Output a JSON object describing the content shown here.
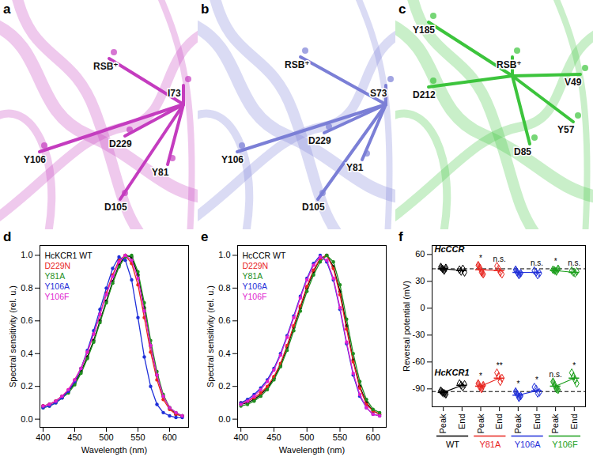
{
  "structures": [
    {
      "panel": "a",
      "color": "#c43cbf",
      "labels": [
        "RSB⁺",
        "I73",
        "D229",
        "Y106",
        "Y81",
        "D105"
      ]
    },
    {
      "panel": "b",
      "color": "#7b7fd6",
      "labels": [
        "RSB⁺",
        "S73",
        "D229",
        "Y106",
        "Y81",
        "D105"
      ]
    },
    {
      "panel": "c",
      "color": "#3cc43c",
      "labels": [
        "Y185",
        "RSB⁺",
        "V49",
        "D212",
        "Y57",
        "D85"
      ]
    }
  ],
  "chart_data": [
    {
      "panel": "d",
      "type": "line",
      "marker": "circle",
      "legend": "top-left",
      "xlabel": "Wavelength (nm)",
      "ylabel": "Spectral sensitivity (rel. u.)",
      "xlim": [
        395,
        630
      ],
      "xticks": [
        400,
        450,
        500,
        550,
        600
      ],
      "ylim": [
        -0.05,
        1.06
      ],
      "yticks": [
        {
          "value": 0,
          "label": "0.0"
        },
        {
          "value": 0.2,
          "label": "0.2"
        },
        {
          "value": 0.4,
          "label": "0.4"
        },
        {
          "value": 0.6,
          "label": "0.6"
        },
        {
          "value": 0.8,
          "label": "0.8"
        },
        {
          "value": 1,
          "label": "1.0"
        }
      ],
      "x": [
        400,
        410,
        420,
        430,
        440,
        450,
        460,
        470,
        480,
        490,
        500,
        510,
        520,
        530,
        540,
        550,
        560,
        570,
        580,
        590,
        600,
        610,
        620
      ],
      "series": [
        {
          "name": "HcKCR1 WT",
          "color": "#000000",
          "values": [
            0.08,
            0.09,
            0.11,
            0.14,
            0.17,
            0.22,
            0.29,
            0.38,
            0.48,
            0.6,
            0.72,
            0.84,
            0.94,
            1.0,
            0.99,
            0.88,
            0.68,
            0.45,
            0.27,
            0.14,
            0.07,
            0.03,
            0.02
          ]
        },
        {
          "name": "D229N",
          "color": "#e8251f",
          "values": [
            0.08,
            0.09,
            0.11,
            0.14,
            0.18,
            0.24,
            0.31,
            0.41,
            0.52,
            0.64,
            0.77,
            0.88,
            0.97,
            1.0,
            0.95,
            0.82,
            0.62,
            0.41,
            0.24,
            0.12,
            0.06,
            0.03,
            0.02
          ]
        },
        {
          "name": "Y81A",
          "color": "#1f8f1f",
          "values": [
            0.07,
            0.08,
            0.1,
            0.13,
            0.16,
            0.21,
            0.28,
            0.37,
            0.47,
            0.59,
            0.71,
            0.83,
            0.93,
            0.99,
            1.0,
            0.9,
            0.71,
            0.48,
            0.29,
            0.15,
            0.07,
            0.04,
            0.02
          ]
        },
        {
          "name": "Y106A",
          "color": "#1f2fd9",
          "values": [
            0.07,
            0.08,
            0.1,
            0.13,
            0.17,
            0.23,
            0.31,
            0.42,
            0.54,
            0.67,
            0.8,
            0.92,
            0.99,
            0.97,
            0.85,
            0.62,
            0.38,
            0.2,
            0.09,
            0.04,
            0.02,
            0.01,
            0.01
          ]
        },
        {
          "name": "Y106F",
          "color": "#e01fd0",
          "values": [
            0.08,
            0.09,
            0.11,
            0.14,
            0.18,
            0.24,
            0.31,
            0.41,
            0.52,
            0.64,
            0.76,
            0.87,
            0.96,
            1.0,
            0.97,
            0.86,
            0.66,
            0.45,
            0.27,
            0.14,
            0.07,
            0.04,
            0.02
          ]
        }
      ]
    },
    {
      "panel": "e",
      "type": "line",
      "marker": "circle",
      "legend": "top-left",
      "xlabel": "Wavelength (nm)",
      "ylabel": "Spectral sensitivity (rel. u.)",
      "xlim": [
        395,
        620
      ],
      "xticks": [
        400,
        450,
        500,
        550,
        600
      ],
      "ylim": [
        -0.05,
        1.06
      ],
      "yticks": [
        {
          "value": 0,
          "label": "0.0"
        },
        {
          "value": 0.2,
          "label": "0.2"
        },
        {
          "value": 0.4,
          "label": "0.4"
        },
        {
          "value": 0.6,
          "label": "0.6"
        },
        {
          "value": 0.8,
          "label": "0.8"
        },
        {
          "value": 1,
          "label": "1.0"
        }
      ],
      "x": [
        400,
        410,
        420,
        430,
        440,
        450,
        460,
        470,
        480,
        490,
        500,
        510,
        520,
        530,
        540,
        550,
        560,
        570,
        580,
        590,
        600,
        610
      ],
      "series": [
        {
          "name": "HcCCR WT",
          "color": "#000000",
          "values": [
            0.09,
            0.1,
            0.12,
            0.15,
            0.19,
            0.25,
            0.33,
            0.44,
            0.56,
            0.68,
            0.8,
            0.9,
            0.98,
            1.0,
            0.93,
            0.78,
            0.57,
            0.36,
            0.2,
            0.1,
            0.05,
            0.03
          ]
        },
        {
          "name": "D229N",
          "color": "#e8251f",
          "values": [
            0.1,
            0.11,
            0.13,
            0.16,
            0.2,
            0.26,
            0.34,
            0.45,
            0.57,
            0.69,
            0.81,
            0.91,
            0.98,
            1.0,
            0.92,
            0.76,
            0.55,
            0.35,
            0.19,
            0.09,
            0.05,
            0.03
          ]
        },
        {
          "name": "Y81A",
          "color": "#1f8f1f",
          "values": [
            0.08,
            0.09,
            0.11,
            0.14,
            0.18,
            0.24,
            0.32,
            0.42,
            0.54,
            0.66,
            0.78,
            0.88,
            0.96,
            1.0,
            0.96,
            0.82,
            0.61,
            0.4,
            0.23,
            0.12,
            0.06,
            0.04
          ]
        },
        {
          "name": "Y106A",
          "color": "#1f2fd9",
          "values": [
            0.1,
            0.12,
            0.15,
            0.19,
            0.24,
            0.31,
            0.4,
            0.51,
            0.63,
            0.75,
            0.86,
            0.95,
            1.0,
            0.96,
            0.85,
            0.67,
            0.46,
            0.27,
            0.14,
            0.07,
            0.03,
            0.02
          ]
        },
        {
          "name": "Y106F",
          "color": "#e01fd0",
          "values": [
            0.09,
            0.11,
            0.14,
            0.18,
            0.23,
            0.3,
            0.39,
            0.5,
            0.62,
            0.74,
            0.85,
            0.94,
            0.99,
            0.97,
            0.86,
            0.68,
            0.47,
            0.28,
            0.15,
            0.07,
            0.03,
            0.02
          ]
        }
      ]
    },
    {
      "panel": "f",
      "type": "scatter",
      "marker": "diamond",
      "ylabel": "Reversal potential (mV)",
      "ylim": [
        -110,
        70
      ],
      "yticks": [
        -90,
        -60,
        -30,
        0,
        30,
        60
      ],
      "categories": [
        "Peak",
        "End",
        "Peak",
        "End",
        "Peak",
        "End",
        "Peak",
        "End"
      ],
      "colors": [
        "#000000",
        "#000000",
        "#e8251f",
        "#e8251f",
        "#1f2fd9",
        "#1f2fd9",
        "#1a9e1a",
        "#1a9e1a"
      ],
      "groups": [
        "WT",
        "Y81A",
        "Y106A",
        "Y106F"
      ],
      "group_colors": [
        "#000000",
        "#e8251f",
        "#1f2fd9",
        "#1a9e1a"
      ],
      "series": [
        {
          "name": "HcCCR",
          "reference": 44,
          "line_style": "dashed",
          "values": [
            44,
            42,
            43,
            42,
            40,
            40,
            42,
            40
          ],
          "errors": [
            1.5,
            1.5,
            2.5,
            2.5,
            1.5,
            1.5,
            1,
            1
          ],
          "points": [
            [
              46,
              44,
              42,
              45
            ],
            [
              43,
              41,
              44,
              40
            ],
            [
              48,
              45,
              40,
              38
            ],
            [
              47,
              44,
              40,
              38
            ],
            [
              43,
              40,
              37,
              39
            ],
            [
              42,
              40,
              37,
              39
            ],
            [
              43,
              42,
              41,
              44
            ],
            [
              42,
              40,
              39,
              41
            ]
          ],
          "annotations": [
            null,
            null,
            "*",
            "n.s.",
            null,
            "n.s.",
            "*",
            "n.s."
          ]
        },
        {
          "name": "HcKCR1",
          "reference": -93,
          "line_style": "dashed",
          "values": [
            -94,
            -86,
            -87,
            -78,
            -97,
            -92,
            -87,
            -78
          ],
          "errors": [
            1,
            1.5,
            2,
            2.5,
            2,
            2,
            2,
            3
          ],
          "points": [
            [
              -92,
              -94,
              -95,
              -96
            ],
            [
              -84,
              -86,
              -88,
              -85
            ],
            [
              -84,
              -88,
              -90,
              -86
            ],
            [
              -72,
              -76,
              -82,
              -78
            ],
            [
              -93,
              -96,
              -100,
              -98
            ],
            [
              -88,
              -90,
              -95,
              -94
            ],
            [
              -82,
              -86,
              -90,
              -91
            ],
            [
              -72,
              -76,
              -80,
              -84
            ]
          ],
          "annotations": [
            null,
            null,
            "*",
            "**",
            "*",
            "*",
            "n.s.",
            "*"
          ]
        }
      ]
    }
  ]
}
